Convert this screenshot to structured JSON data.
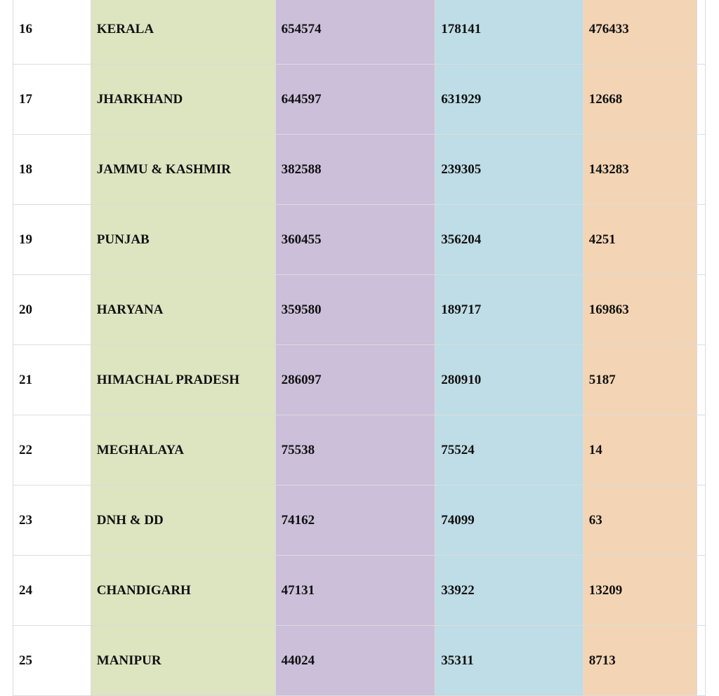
{
  "colors": {
    "state_col": "#dde4c0",
    "col3": "#cbbfda",
    "col4": "#bedde6",
    "col5": "#f3d4b4"
  },
  "rows": [
    {
      "sno": "16",
      "state": "KERALA",
      "c3": "654574",
      "c4": "178141",
      "c5": "476433"
    },
    {
      "sno": "17",
      "state": "JHARKHAND",
      "c3": "644597",
      "c4": "631929",
      "c5": "12668"
    },
    {
      "sno": "18",
      "state": "JAMMU & KASHMIR",
      "c3": "382588",
      "c4": "239305",
      "c5": "143283"
    },
    {
      "sno": "19",
      "state": "PUNJAB",
      "c3": "360455",
      "c4": "356204",
      "c5": "4251"
    },
    {
      "sno": "20",
      "state": "HARYANA",
      "c3": "359580",
      "c4": "189717",
      "c5": "169863"
    },
    {
      "sno": "21",
      "state": "HIMACHAL PRADESH",
      "c3": "286097",
      "c4": "280910",
      "c5": "5187"
    },
    {
      "sno": "22",
      "state": "MEGHALAYA",
      "c3": "75538",
      "c4": "75524",
      "c5": "14"
    },
    {
      "sno": "23",
      "state": "DNH & DD",
      "c3": "74162",
      "c4": "74099",
      "c5": "63"
    },
    {
      "sno": "24",
      "state": "CHANDIGARH",
      "c3": "47131",
      "c4": "33922",
      "c5": "13209"
    },
    {
      "sno": "25",
      "state": "MANIPUR",
      "c3": "44024",
      "c4": "35311",
      "c5": "8713"
    }
  ]
}
